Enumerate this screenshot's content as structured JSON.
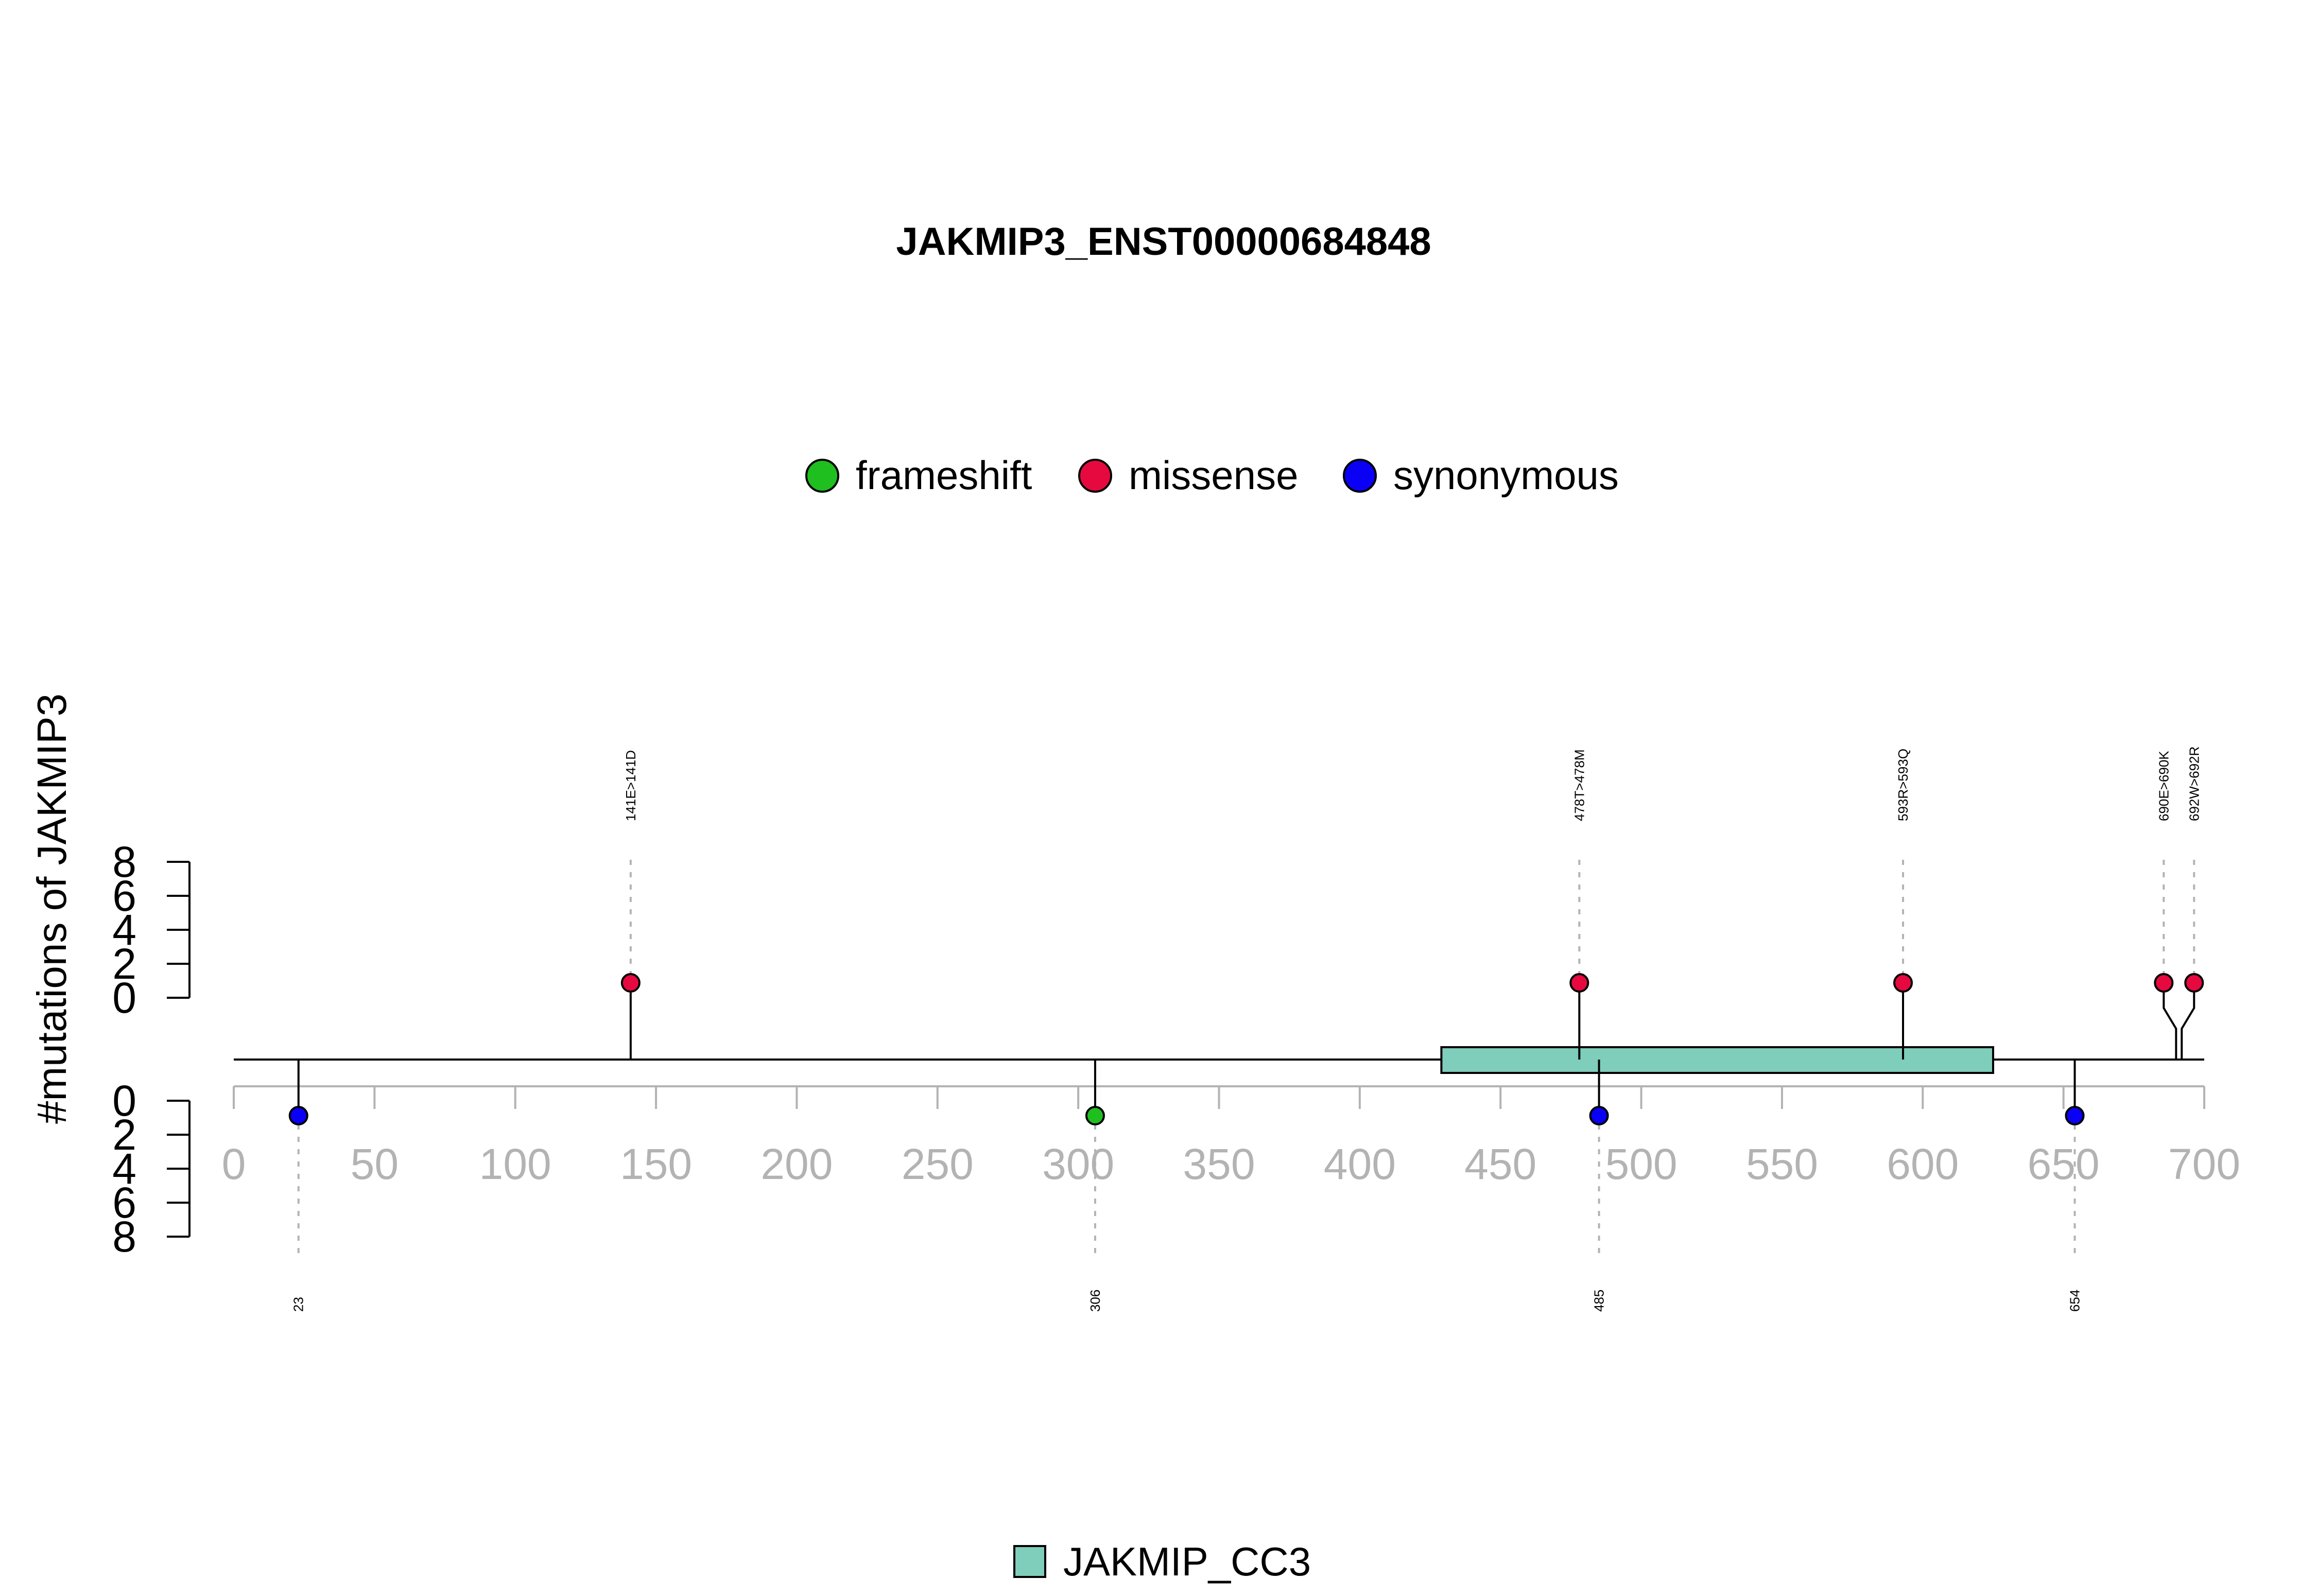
{
  "chart_data": {
    "type": "lollipop",
    "title": "JAKMIP3_ENST00000684848",
    "ylabel": "#mutations of JAKMIP3",
    "xlim": [
      0,
      700
    ],
    "x_ticks": [
      0,
      50,
      100,
      150,
      200,
      250,
      300,
      350,
      400,
      450,
      500,
      550,
      600,
      650,
      700
    ],
    "y_ticks_top": [
      0,
      2,
      4,
      6,
      8
    ],
    "y_ticks_bottom": [
      0,
      2,
      4,
      6,
      8
    ],
    "legend": [
      {
        "name": "frameshift",
        "color": "#1fbf1f"
      },
      {
        "name": "missense",
        "color": "#e6093f"
      },
      {
        "name": "synonymous",
        "color": "#0a00f5"
      }
    ],
    "mutations_top": [
      {
        "position": 141,
        "label": "141E>141D",
        "type": "missense",
        "count": 1
      },
      {
        "position": 478,
        "label": "478T>478M",
        "type": "missense",
        "count": 1
      },
      {
        "position": 593,
        "label": "593R>593Q",
        "type": "missense",
        "count": 1
      },
      {
        "position": 690,
        "label": "690E>690K",
        "type": "missense",
        "count": 1
      },
      {
        "position": 692,
        "label": "692W>692R",
        "type": "missense",
        "count": 1
      }
    ],
    "mutations_bottom": [
      {
        "position": 23,
        "label": "23",
        "type": "synonymous",
        "count": 1
      },
      {
        "position": 306,
        "label": "306",
        "type": "frameshift",
        "count": 1
      },
      {
        "position": 485,
        "label": "485",
        "type": "synonymous",
        "count": 1
      },
      {
        "position": 654,
        "label": "654",
        "type": "synonymous",
        "count": 1
      }
    ],
    "domains": [
      {
        "name": "JAKMIP_CC3",
        "start": 429,
        "end": 625,
        "color": "#7fcdbb"
      }
    ]
  }
}
